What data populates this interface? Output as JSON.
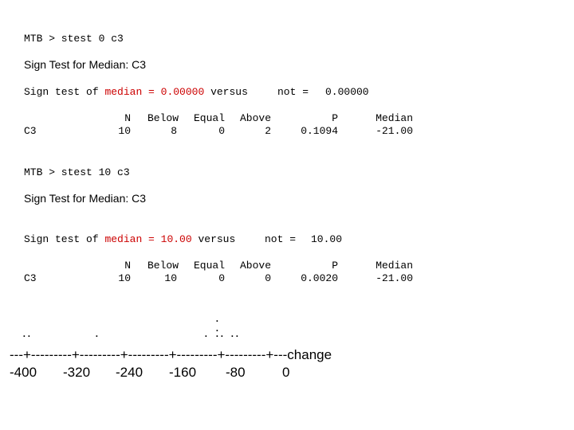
{
  "session1": {
    "command": "MTB > stest 0 c3",
    "heading": "Sign Test for Median: C3",
    "line_prefix": "Sign test of",
    "line_median": "median = 0.00000",
    "line_versus": "versus",
    "line_not": "not =",
    "line_value": "0.00000",
    "headers": {
      "n": "N",
      "below": "Below",
      "equal": "Equal",
      "above": "Above",
      "p": "P",
      "median": "Median"
    },
    "row": {
      "label": "C3",
      "n": "10",
      "below": "8",
      "equal": "0",
      "above": "2",
      "p": "0.1094",
      "median": "-21.00"
    }
  },
  "session2": {
    "command": "MTB > stest 10 c3",
    "heading": "Sign Test for Median: C3",
    "line_prefix": "Sign test of",
    "line_median": "median = 10.00",
    "line_versus": "versus",
    "line_not": "not =",
    "line_value": "10.00",
    "headers": {
      "n": "N",
      "below": "Below",
      "equal": "Equal",
      "above": "Above",
      "p": "P",
      "median": "Median"
    },
    "row": {
      "label": "C3",
      "n": "10",
      "below": "10",
      "equal": "0",
      "above": "0",
      "p": "0.0020",
      "median": "-21.00"
    }
  },
  "dotplot": {
    "axis_line": "---+---------+---------+---------+---------+---------+---change",
    "ticks": [
      "-400",
      "-320",
      "-240",
      "-160",
      "-80",
      "0"
    ]
  },
  "colors": {
    "highlight": "#cc0000"
  }
}
